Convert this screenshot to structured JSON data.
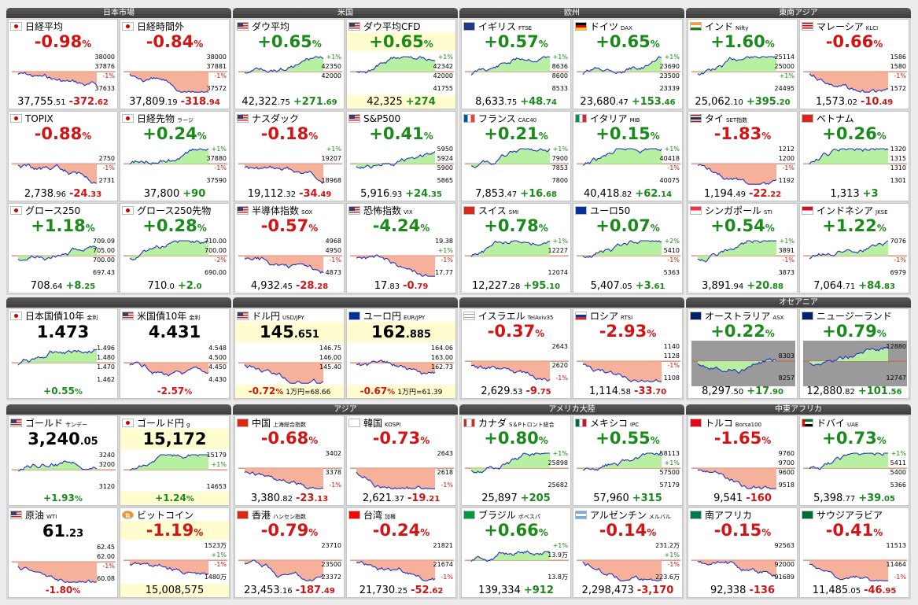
{
  "groups": [
    {
      "id": "jp",
      "title": "日本市場"
    },
    {
      "id": "us",
      "title": "米国"
    },
    {
      "id": "eu",
      "title": "欧州"
    },
    {
      "id": "sea",
      "title": "東南アジア"
    },
    {
      "id": "blank1",
      "title": ""
    },
    {
      "id": "blank2",
      "title": ""
    },
    {
      "id": "blank3",
      "title": ""
    },
    {
      "id": "oce",
      "title": "オセアニア"
    },
    {
      "id": "blank4",
      "title": ""
    },
    {
      "id": "asia",
      "title": "アジア"
    },
    {
      "id": "am",
      "title": "アメリカ大陸"
    },
    {
      "id": "mea",
      "title": "中東アフリカ"
    }
  ],
  "cards": [
    {
      "name": "日経平均",
      "sub": "",
      "flag": "jp",
      "pct": "-0.98",
      "dir": "dn",
      "val": "37,755",
      "dec": ".51",
      "chg": "-372",
      "chgdec": ".62",
      "ticks": [
        "38000",
        "37876",
        "-1%",
        "37633"
      ]
    },
    {
      "name": "日経時間外",
      "sub": "",
      "flag": "jp",
      "pct": "-0.84",
      "dir": "dn",
      "val": "37,809",
      "dec": ".19",
      "chg": "-318",
      "chgdec": ".94",
      "ticks": [
        "38000",
        "37881",
        "-1%",
        "37572"
      ]
    },
    {
      "name": "ダウ平均",
      "sub": "",
      "flag": "us",
      "pct": "+0.65",
      "dir": "up",
      "val": "42,322",
      "dec": ".75",
      "chg": "+271",
      "chgdec": ".69",
      "ticks": [
        "+1%",
        "42350",
        "42000",
        ""
      ]
    },
    {
      "name": "ダウ平均CFD",
      "sub": "",
      "flag": "us",
      "pct": "+0.65",
      "dir": "up",
      "val": "42,325",
      "dec": "",
      "chg": "+274",
      "chgdec": "",
      "ticks": [
        "+1%",
        "42342",
        "42000",
        "41755"
      ],
      "yellow": true
    },
    {
      "name": "イギリス",
      "sub": "FTSE",
      "flag": "uk",
      "pct": "+0.57",
      "dir": "up",
      "val": "8,633",
      "dec": ".75",
      "chg": "+48",
      "chgdec": ".74",
      "ticks": [
        "+1%",
        "8636",
        "8600",
        "8533"
      ]
    },
    {
      "name": "ドイツ",
      "sub": "DAX",
      "flag": "de",
      "pct": "+0.65",
      "dir": "up",
      "val": "23,680",
      "dec": ".47",
      "chg": "+153",
      "chgdec": ".46",
      "ticks": [
        "+1%",
        "23690",
        "23500",
        "23339"
      ]
    },
    {
      "name": "インド",
      "sub": "Nifty",
      "flag": "in",
      "pct": "+1.60",
      "dir": "up",
      "val": "25,062",
      "dec": ".10",
      "chg": "+395",
      "chgdec": ".20",
      "ticks": [
        "25114",
        "25000",
        "+1%",
        "24495"
      ]
    },
    {
      "name": "マレーシア",
      "sub": "KLCI",
      "flag": "my",
      "pct": "-0.66",
      "dir": "dn",
      "val": "1,573",
      "dec": ".02",
      "chg": "-10",
      "chgdec": ".49",
      "ticks": [
        "1586",
        "1580",
        "-1%",
        "1572"
      ]
    },
    {
      "name": "TOPIX",
      "sub": "",
      "flag": "jp",
      "pct": "-0.88",
      "dir": "dn",
      "val": "2,738",
      "dec": ".96",
      "chg": "-24",
      "chgdec": ".33",
      "ticks": [
        "",
        "2750",
        "-1%",
        "2731"
      ]
    },
    {
      "name": "日経先物",
      "sub": "ラージ",
      "flag": "jp",
      "pct": "+0.24",
      "dir": "up",
      "val": "37,800",
      "dec": "",
      "chg": "+90",
      "chgdec": "",
      "ticks": [
        "+1%",
        "37880",
        "-1%",
        "37590"
      ]
    },
    {
      "name": "ナスダック",
      "sub": "",
      "flag": "us",
      "pct": "-0.18",
      "dir": "dn",
      "val": "19,112",
      "dec": ".32",
      "chg": "-34",
      "chgdec": ".49",
      "ticks": [
        "+1%",
        "19207",
        "",
        "18968"
      ]
    },
    {
      "name": "S&P500",
      "sub": "",
      "flag": "us",
      "pct": "+0.41",
      "dir": "up",
      "val": "5,916",
      "dec": ".93",
      "chg": "+24",
      "chgdec": ".35",
      "ticks": [
        "5950",
        "5924",
        "5900",
        "5865"
      ]
    },
    {
      "name": "フランス",
      "sub": "CAC40",
      "flag": "fr",
      "pct": "+0.21",
      "dir": "up",
      "val": "7,853",
      "dec": ".47",
      "chg": "+16",
      "chgdec": ".68",
      "ticks": [
        "+1%",
        "7900",
        "7853",
        "7800"
      ]
    },
    {
      "name": "イタリア",
      "sub": "MIB",
      "flag": "it",
      "pct": "+0.15",
      "dir": "up",
      "val": "40,418",
      "dec": ".82",
      "chg": "+62",
      "chgdec": ".14",
      "ticks": [
        "+1%",
        "40418",
        "-1%",
        "40075"
      ]
    },
    {
      "name": "タイ",
      "sub": "SET指数",
      "flag": "th",
      "pct": "-1.83",
      "dir": "dn",
      "val": "1,194",
      "dec": ".49",
      "chg": "-22",
      "chgdec": ".22",
      "ticks": [
        "1212",
        "1200",
        "-1%",
        "1192"
      ]
    },
    {
      "name": "ベトナム",
      "sub": "",
      "flag": "vn",
      "pct": "+0.26",
      "dir": "up",
      "val": "1,313",
      "dec": "",
      "chg": "+3",
      "chgdec": "",
      "ticks": [
        "1320",
        "1315",
        "1310",
        "1301"
      ]
    },
    {
      "name": "グロース250",
      "sub": "",
      "flag": "jp",
      "pct": "+1.18",
      "dir": "up",
      "val": "708",
      "dec": ".64",
      "chg": "+8",
      "chgdec": ".25",
      "ticks": [
        "709.09",
        "705.00",
        "700.00",
        "697.43"
      ]
    },
    {
      "name": "グロース250先物",
      "sub": "",
      "flag": "jp",
      "pct": "+0.28",
      "dir": "up",
      "val": "710",
      "dec": ".0",
      "chg": "+2",
      "chgdec": ".0",
      "ticks": [
        "710.00",
        "700.00",
        "-2%",
        "690.00"
      ]
    },
    {
      "name": "半導体指数",
      "sub": "SOX",
      "flag": "us",
      "pct": "-0.57",
      "dir": "dn",
      "val": "4,932",
      "dec": ".45",
      "chg": "-28",
      "chgdec": ".28",
      "ticks": [
        "4968",
        "4950",
        "-1%",
        "4873"
      ]
    },
    {
      "name": "恐怖指数",
      "sub": "VIX",
      "flag": "us",
      "pct": "-4.24",
      "dir": "up",
      "val": "17",
      "dec": ".83",
      "chg": "-0",
      "chgdec": ".79",
      "ticks": [
        "19.38",
        "+1%",
        "-1%",
        "17.77"
      ]
    },
    {
      "name": "スイス",
      "sub": "SMI",
      "flag": "ch",
      "pct": "+0.78",
      "dir": "up",
      "val": "12,227",
      "dec": ".28",
      "chg": "+95",
      "chgdec": ".10",
      "ticks": [
        "+1%",
        "12227",
        "",
        "12074"
      ]
    },
    {
      "name": "ユーロ50",
      "sub": "",
      "flag": "eu",
      "pct": "+0.07",
      "dir": "up",
      "val": "5,407",
      "dec": ".05",
      "chg": "+3",
      "chgdec": ".61",
      "ticks": [
        "+2%",
        "5410",
        "-1%",
        "5363"
      ]
    },
    {
      "name": "シンガポール",
      "sub": "STI",
      "flag": "sg",
      "pct": "+0.54",
      "dir": "up",
      "val": "3,891",
      "dec": ".94",
      "chg": "+20",
      "chgdec": ".88",
      "ticks": [
        "+1%",
        "3891",
        "-1%",
        "3873"
      ]
    },
    {
      "name": "インドネシア",
      "sub": "JKSE",
      "flag": "id",
      "pct": "+1.22",
      "dir": "up",
      "val": "7,064",
      "dec": ".71",
      "chg": "+84",
      "chgdec": ".83",
      "ticks": [
        "7076",
        "",
        "-1%",
        "6979"
      ]
    },
    {
      "name": "日本国債10年",
      "sub": "金利",
      "flag": "jp",
      "price": "1.473",
      "pct": "+0.55",
      "dir": "up",
      "ticks": [
        "1.496",
        "1.480",
        "1.470",
        "1.462"
      ]
    },
    {
      "name": "米国債10年",
      "sub": "金利",
      "flag": "us",
      "price": "4.431",
      "pct": "-2.57",
      "dir": "dn",
      "ticks": [
        "4.548",
        "4.500",
        "4.450",
        "4.430"
      ]
    },
    {
      "name": "ドル円",
      "sub": "USD/JPY",
      "flag": "us",
      "price": "145",
      "pricedec": ".651",
      "pct": "-0.72",
      "dir": "dn",
      "extra": "1万円=68.66",
      "ticks": [
        "146.75",
        "146.00",
        "145.40",
        ""
      ],
      "yellow": true
    },
    {
      "name": "ユーロ円",
      "sub": "EUR/JPY",
      "flag": "eu",
      "price": "162",
      "pricedec": ".885",
      "pct": "-0.67",
      "dir": "dn",
      "extra": "1万円=61.39",
      "ticks": [
        "164.06",
        "163.00",
        "162.73",
        ""
      ],
      "yellow": true
    },
    {
      "name": "イスラエル",
      "sub": "TelAviv35",
      "flag": "il",
      "pct": "-0.37",
      "dir": "dn",
      "val": "2,629",
      "dec": ".53",
      "chg": "-9",
      "chgdec": ".75",
      "ticks": [
        "2643",
        "",
        "2620",
        "-1%"
      ]
    },
    {
      "name": "ロシア",
      "sub": "RTSI",
      "flag": "ru",
      "pct": "-2.93",
      "dir": "dn",
      "val": "1,114",
      "dec": ".58",
      "chg": "-33",
      "chgdec": ".70",
      "ticks": [
        "1140",
        "1128",
        "-1%",
        "1108"
      ]
    },
    {
      "name": "オーストラリア",
      "sub": "ASX",
      "flag": "au",
      "pct": "+0.22",
      "dir": "up",
      "val": "8,297",
      "dec": ".50",
      "chg": "+17",
      "chgdec": ".90",
      "ticks": [
        "",
        "8303",
        "",
        "8257"
      ],
      "gray": true
    },
    {
      "name": "ニュージーランド",
      "sub": "",
      "flag": "nz",
      "pct": "+0.79",
      "dir": "up",
      "val": "12,880",
      "dec": ".82",
      "chg": "+101",
      "chgdec": ".56",
      "ticks": [
        "12880",
        "",
        "",
        "12747"
      ],
      "gray": true
    },
    {
      "name": "ゴールド",
      "sub": "サンデー",
      "flag": "us",
      "price": "3,240",
      "pricedec": ".05",
      "pct": "+1.93",
      "dir": "up",
      "ticks": [
        "3240",
        "3200",
        "",
        "3120"
      ]
    },
    {
      "name": "ゴールド円",
      "sub": "g",
      "flag": "jp",
      "price": "15,172",
      "pricedec": "",
      "pct": "+1.24",
      "dir": "up",
      "ticks": [
        "15179",
        "+1%",
        "",
        "14653"
      ],
      "yellow": true
    },
    {
      "name": "中国",
      "sub": "上海総合指数",
      "flag": "cn",
      "pct": "-0.68",
      "dir": "dn",
      "val": "3,380",
      "dec": ".82",
      "chg": "-23",
      "chgdec": ".13",
      "ticks": [
        "3402",
        "",
        "3378",
        "-1%"
      ]
    },
    {
      "name": "韓国",
      "sub": "KOSPI",
      "flag": "kr",
      "pct": "-0.73",
      "dir": "dn",
      "val": "2,621",
      "dec": ".37",
      "chg": "-19",
      "chgdec": ".21",
      "ticks": [
        "2643",
        "",
        "2618",
        "-1%"
      ]
    },
    {
      "name": "カナダ",
      "sub": "S＆Pトロント総合",
      "flag": "ca",
      "pct": "+0.80",
      "dir": "up",
      "val": "25,897",
      "dec": "",
      "chg": "+205",
      "chgdec": "",
      "ticks": [
        "+1%",
        "25898",
        "",
        "25682"
      ]
    },
    {
      "name": "メキシコ",
      "sub": "IPC",
      "flag": "mx",
      "pct": "+0.55",
      "dir": "up",
      "val": "57,960",
      "dec": "",
      "chg": "+315",
      "chgdec": "",
      "ticks": [
        "58113",
        "+1%",
        "57500",
        "57179"
      ]
    },
    {
      "name": "トルコ",
      "sub": "Borsa100",
      "flag": "tr",
      "pct": "-1.65",
      "dir": "dn",
      "val": "9,541",
      "dec": "",
      "chg": "-160",
      "chgdec": "",
      "ticks": [
        "9760",
        "9700",
        "9600",
        "9518"
      ]
    },
    {
      "name": "ドバイ",
      "sub": "UAE",
      "flag": "ae",
      "pct": "+0.73",
      "dir": "up",
      "val": "5,398",
      "dec": ".77",
      "chg": "+39",
      "chgdec": ".05",
      "ticks": [
        "+1%",
        "5411",
        "5400",
        "5366"
      ]
    },
    {
      "name": "原油",
      "sub": "WTI",
      "flag": "us",
      "price": "61",
      "pricedec": ".23",
      "pct": "-1.80",
      "dir": "dn",
      "ticks": [
        "62.45",
        "62.00",
        "-1%",
        "60.08"
      ]
    },
    {
      "name": "ビットコイン",
      "sub": "",
      "flag": "btc",
      "pct": "-1.19",
      "dir": "dn",
      "val": "15,008,575",
      "dec": "",
      "chg": "",
      "chgdec": "",
      "ticks": [
        "1523万",
        "+1%",
        "-1%",
        "1480万"
      ],
      "yellow": true,
      "btc": true
    },
    {
      "name": "香港",
      "sub": "ハンセン指数",
      "flag": "hk",
      "pct": "-0.79",
      "dir": "dn",
      "val": "23,453",
      "dec": ".16",
      "chg": "-187",
      "chgdec": ".49",
      "ticks": [
        "23710",
        "",
        "23500",
        "23372"
      ]
    },
    {
      "name": "台湾",
      "sub": "加権",
      "flag": "tw",
      "pct": "-0.24",
      "dir": "dn",
      "val": "21,730",
      "dec": ".25",
      "chg": "-52",
      "chgdec": ".62",
      "ticks": [
        "21821",
        "",
        "21674",
        "-1%"
      ]
    },
    {
      "name": "ブラジル",
      "sub": "ボベスパ",
      "flag": "br",
      "pct": "+0.66",
      "dir": "up",
      "val": "139,334",
      "dec": "",
      "chg": "+912",
      "chgdec": "",
      "ticks": [
        "+1%",
        "13.9万",
        "",
        "13.8万"
      ]
    },
    {
      "name": "アルゼンチン",
      "sub": "メルバル",
      "flag": "ar",
      "pct": "-0.14",
      "dir": "dn",
      "val": "2,298,473",
      "dec": "",
      "chg": "-3,170",
      "chgdec": "",
      "ticks": [
        "231.2万",
        "+1%",
        "-1%",
        "223.6万"
      ]
    },
    {
      "name": "南アフリカ",
      "sub": "",
      "flag": "za",
      "pct": "-0.15",
      "dir": "dn",
      "val": "92,338",
      "dec": "",
      "chg": "-136",
      "chgdec": "",
      "ticks": [
        "92563",
        "",
        "92000",
        "91689"
      ]
    },
    {
      "name": "サウジアラビア",
      "sub": "",
      "flag": "sa",
      "pct": "-0.41",
      "dir": "dn",
      "val": "11,485",
      "dec": ".05",
      "chg": "-46",
      "chgdec": ".95",
      "ticks": [
        "11513",
        "",
        "11464",
        "-1%"
      ]
    }
  ]
}
